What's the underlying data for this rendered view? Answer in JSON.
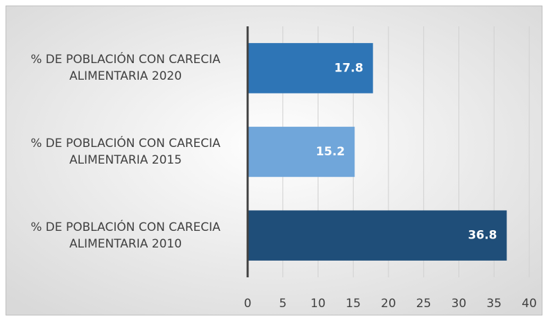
{
  "chart_data": {
    "type": "bar",
    "orientation": "horizontal",
    "categories": [
      "% DE POBLACIÓN CON CARECIA ALIMENTARIA 2020",
      "% DE POBLACIÓN CON CARECIA ALIMENTARIA 2015",
      "% DE POBLACIÓN CON CARECIA ALIMENTARIA 2010"
    ],
    "values": [
      17.8,
      15.2,
      36.8
    ],
    "colors": [
      "#2e75b6",
      "#70a6da",
      "#1f4e79"
    ],
    "xlim": [
      0,
      40
    ],
    "xticks": [
      0,
      5,
      10,
      15,
      20,
      25,
      30,
      35,
      40
    ],
    "grid": true
  }
}
